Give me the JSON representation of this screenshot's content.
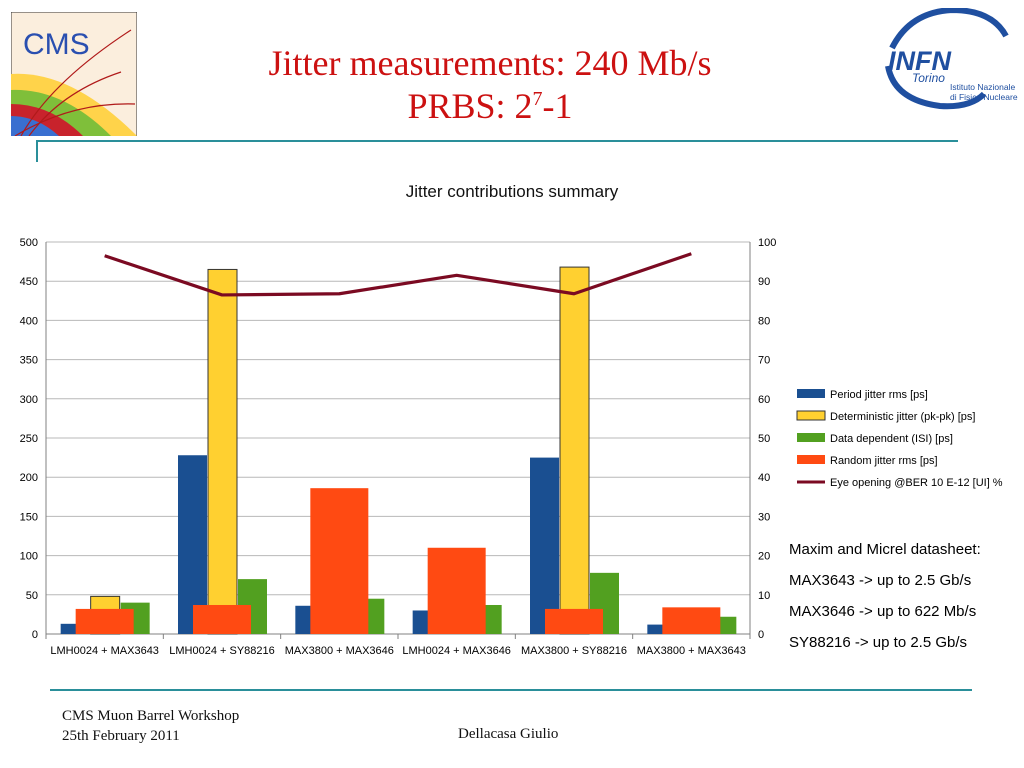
{
  "slide": {
    "title_line1": "Jitter measurements: 240 Mb/s",
    "title_line2_base": "PRBS: 2",
    "title_line2_sup": "7",
    "title_line2_tail": "-1"
  },
  "logos": {
    "cms_text": "CMS",
    "infn_text": "INFN",
    "infn_sub": "Torino",
    "infn_desc1": "Istituto Nazionale",
    "infn_desc2": "di Fisica Nucleare"
  },
  "notes": [
    "Maxim and Micrel datasheet:",
    "MAX3643 -> up to 2.5 Gb/s",
    "MAX3646 -> up to 622 Mb/s",
    "SY88216 -> up to 2.5 Gb/s"
  ],
  "footer": {
    "line1": "CMS Muon Barrel Workshop",
    "line2": "25th February 2011",
    "author": "Dellacasa Giulio"
  },
  "colors": {
    "period": "#1a4f91",
    "deterministic": "#ffd030",
    "data_dependent": "#52a020",
    "random": "#ff4a12",
    "eye": "#7b0a22",
    "title": "#cc1111",
    "rule": "#2a8f9a"
  },
  "chart_data": {
    "type": "bar",
    "title": "Jitter contributions summary",
    "categories": [
      "LMH0024 + MAX3643",
      "LMH0024 + SY88216",
      "MAX3800 + MAX3646",
      "LMH0024 + MAX3646",
      "MAX3800 + SY88216",
      "MAX3800 + MAX3643"
    ],
    "ylim": [
      0,
      500
    ],
    "y_ticks": [
      0,
      50,
      100,
      150,
      200,
      250,
      300,
      350,
      400,
      450,
      500
    ],
    "y2lim": [
      0,
      100
    ],
    "y2_ticks": [
      0,
      10,
      20,
      30,
      40,
      50,
      60,
      70,
      80,
      90,
      100
    ],
    "grid": true,
    "legend_position": "right",
    "series": [
      {
        "name": "Period jitter rms [ps]",
        "values": [
          13,
          228,
          36,
          30,
          225,
          12
        ],
        "axis": "left",
        "kind": "bar"
      },
      {
        "name": "Deterministic jitter (pk-pk) [ps]",
        "values": [
          48,
          465,
          null,
          null,
          468,
          null
        ],
        "axis": "left",
        "kind": "bar"
      },
      {
        "name": "Data dependent (ISI) [ps]",
        "values": [
          40,
          70,
          45,
          37,
          78,
          22
        ],
        "axis": "left",
        "kind": "bar"
      },
      {
        "name": "Random jitter rms [ps]",
        "values": [
          32,
          37,
          186,
          110,
          32,
          34
        ],
        "axis": "left",
        "kind": "bar"
      },
      {
        "name": "Eye opening @BER 10 E-12 [UI] %",
        "values": [
          96.5,
          86.5,
          86.8,
          91.5,
          86.8,
          97
        ],
        "axis": "right",
        "kind": "line"
      }
    ]
  }
}
